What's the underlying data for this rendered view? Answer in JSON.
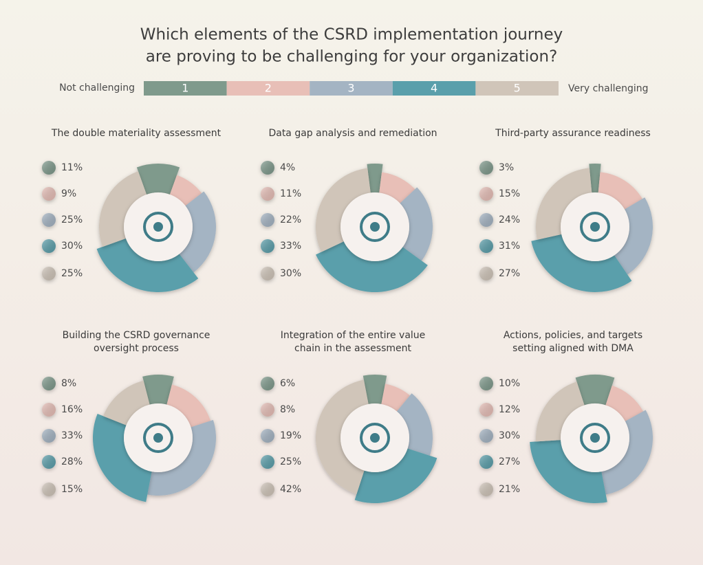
{
  "title": [
    "Which elements of the CSRD implementation journey",
    "are proving to be challenging for your organization?"
  ],
  "scale": {
    "low_label": "Not challenging",
    "high_label": "Very challenging",
    "levels": [
      "1",
      "2",
      "3",
      "4",
      "5"
    ],
    "colors": [
      "#7f9a8c",
      "#e8bfb7",
      "#a4b4c3",
      "#5a9fab",
      "#d0c5b9"
    ]
  },
  "chart_data": [
    {
      "type": "pie",
      "title": [
        "The double materiality assessment"
      ],
      "values": [
        11,
        9,
        25,
        30,
        25
      ],
      "value_labels": [
        "11%",
        "9%",
        "25%",
        "30%",
        "25%"
      ]
    },
    {
      "type": "pie",
      "title": [
        "Data gap analysis and remediation"
      ],
      "values": [
        4,
        11,
        22,
        33,
        30
      ],
      "value_labels": [
        "4%",
        "11%",
        "22%",
        "33%",
        "30%"
      ]
    },
    {
      "type": "pie",
      "title": [
        "Third-party assurance readiness"
      ],
      "values": [
        3,
        15,
        24,
        31,
        27
      ],
      "value_labels": [
        "3%",
        "15%",
        "24%",
        "31%",
        "27%"
      ]
    },
    {
      "type": "pie",
      "title": [
        "Building the CSRD governance",
        "oversight process"
      ],
      "values": [
        8,
        16,
        33,
        28,
        15
      ],
      "value_labels": [
        "8%",
        "16%",
        "33%",
        "28%",
        "15%"
      ]
    },
    {
      "type": "pie",
      "title": [
        "Integration of the entire value",
        "chain in the assessment"
      ],
      "values": [
        6,
        8,
        19,
        25,
        42
      ],
      "value_labels": [
        "6%",
        "8%",
        "19%",
        "25%",
        "42%"
      ]
    },
    {
      "type": "pie",
      "title": [
        "Actions, policies, and targets",
        "setting aligned with DMA"
      ],
      "values": [
        10,
        12,
        30,
        27,
        21
      ],
      "value_labels": [
        "10%",
        "12%",
        "30%",
        "27%",
        "21%"
      ]
    }
  ]
}
